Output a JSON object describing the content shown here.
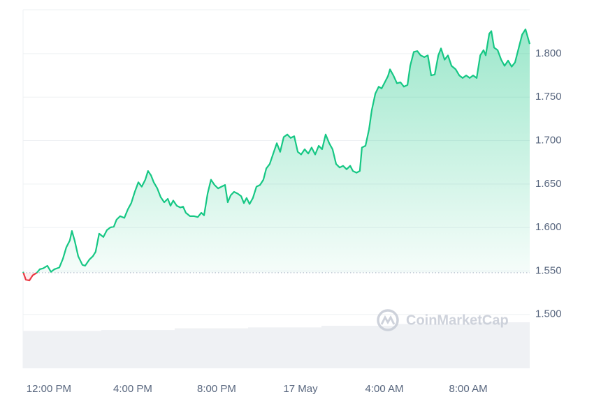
{
  "chart_data": {
    "type": "line",
    "watermark": "CoinMarketCap",
    "x": [
      -1.23,
      -1.1,
      -0.93,
      -0.77,
      -0.57,
      -0.43,
      -0.27,
      -0.07,
      0.1,
      0.27,
      0.5,
      0.67,
      0.83,
      1,
      1.1,
      1.23,
      1.4,
      1.6,
      1.73,
      1.93,
      2.1,
      2.23,
      2.4,
      2.6,
      2.77,
      2.93,
      3.1,
      3.23,
      3.4,
      3.6,
      3.77,
      3.93,
      4.1,
      4.27,
      4.43,
      4.6,
      4.73,
      4.87,
      5,
      5.17,
      5.33,
      5.5,
      5.67,
      5.8,
      5.93,
      6.1,
      6.27,
      6.4,
      6.53,
      6.73,
      6.93,
      7.1,
      7.27,
      7.4,
      7.57,
      7.73,
      7.9,
      8.07,
      8.23,
      8.4,
      8.53,
      8.67,
      8.83,
      9,
      9.17,
      9.3,
      9.43,
      9.57,
      9.73,
      9.9,
      10.07,
      10.23,
      10.37,
      10.53,
      10.7,
      10.87,
      11.03,
      11.2,
      11.37,
      11.53,
      11.7,
      11.87,
      12.03,
      12.2,
      12.37,
      12.53,
      12.7,
      12.87,
      13.03,
      13.2,
      13.37,
      13.53,
      13.7,
      13.87,
      14.03,
      14.2,
      14.37,
      14.5,
      14.67,
      14.83,
      14.93,
      15.1,
      15.27,
      15.4,
      15.57,
      15.73,
      15.87,
      16,
      16.17,
      16.27,
      16.43,
      16.6,
      16.77,
      16.93,
      17.1,
      17.23,
      17.4,
      17.57,
      17.73,
      17.9,
      18.07,
      18.23,
      18.4,
      18.57,
      18.7,
      18.87,
      19.03,
      19.2,
      19.4,
      19.57,
      19.73,
      19.9,
      20.07,
      20.23,
      20.4,
      20.57,
      20.73,
      20.83,
      21,
      21.1,
      21.23,
      21.4,
      21.57,
      21.73,
      21.9,
      22.07,
      22.23,
      22.4,
      22.57,
      22.73,
      22.93
    ],
    "series": [
      {
        "color": "#16c784",
        "down_color": "#ea3943",
        "values": [
          1.549,
          1.54,
          1.539,
          1.545,
          1.548,
          1.552,
          1.553,
          1.556,
          1.549,
          1.552,
          1.554,
          1.564,
          1.577,
          1.585,
          1.596,
          1.585,
          1.567,
          1.557,
          1.556,
          1.563,
          1.567,
          1.572,
          1.593,
          1.589,
          1.597,
          1.6,
          1.601,
          1.609,
          1.613,
          1.611,
          1.621,
          1.628,
          1.641,
          1.652,
          1.647,
          1.655,
          1.665,
          1.66,
          1.652,
          1.645,
          1.635,
          1.629,
          1.633,
          1.625,
          1.631,
          1.625,
          1.623,
          1.624,
          1.617,
          1.613,
          1.613,
          1.612,
          1.617,
          1.614,
          1.639,
          1.655,
          1.649,
          1.645,
          1.647,
          1.649,
          1.629,
          1.637,
          1.641,
          1.639,
          1.636,
          1.628,
          1.634,
          1.627,
          1.634,
          1.647,
          1.649,
          1.655,
          1.668,
          1.673,
          1.685,
          1.697,
          1.687,
          1.704,
          1.707,
          1.703,
          1.705,
          1.687,
          1.684,
          1.69,
          1.685,
          1.692,
          1.684,
          1.694,
          1.69,
          1.707,
          1.697,
          1.69,
          1.673,
          1.669,
          1.671,
          1.667,
          1.671,
          1.665,
          1.663,
          1.665,
          1.692,
          1.694,
          1.713,
          1.735,
          1.754,
          1.762,
          1.76,
          1.766,
          1.774,
          1.782,
          1.775,
          1.766,
          1.767,
          1.762,
          1.764,
          1.786,
          1.802,
          1.803,
          1.798,
          1.796,
          1.798,
          1.775,
          1.776,
          1.798,
          1.806,
          1.793,
          1.798,
          1.786,
          1.782,
          1.775,
          1.772,
          1.775,
          1.772,
          1.775,
          1.772,
          1.798,
          1.804,
          1.798,
          1.823,
          1.826,
          1.807,
          1.804,
          1.793,
          1.786,
          1.792,
          1.785,
          1.79,
          1.806,
          1.822,
          1.828,
          1.811
        ]
      }
    ],
    "baseline": 1.548,
    "volume": {
      "color": "#eff1f4",
      "x": [
        -1.23,
        2.5,
        6,
        9.5,
        13,
        16.5,
        20,
        22.93
      ],
      "values": [
        1.481,
        1.482,
        1.484,
        1.485,
        1.487,
        1.489,
        1.491,
        1.494
      ]
    },
    "xlim": [
      -1.23,
      22.93
    ],
    "xticks": [
      {
        "value": 0,
        "label": "12:00 PM"
      },
      {
        "value": 4,
        "label": "4:00 PM"
      },
      {
        "value": 8,
        "label": "8:00 PM"
      },
      {
        "value": 12,
        "label": "17 May"
      },
      {
        "value": 16,
        "label": "4:00 AM"
      },
      {
        "value": 20,
        "label": "8:00 AM"
      }
    ],
    "ylim": [
      1.438,
      1.8505
    ],
    "yticks": [
      {
        "value": 1.5,
        "label": "1.500"
      },
      {
        "value": 1.55,
        "label": "1.550"
      },
      {
        "value": 1.6,
        "label": "1.600"
      },
      {
        "value": 1.65,
        "label": "1.650"
      },
      {
        "value": 1.7,
        "label": "1.700"
      },
      {
        "value": 1.75,
        "label": "1.750"
      },
      {
        "value": 1.8,
        "label": "1.800"
      }
    ],
    "grid": true
  }
}
